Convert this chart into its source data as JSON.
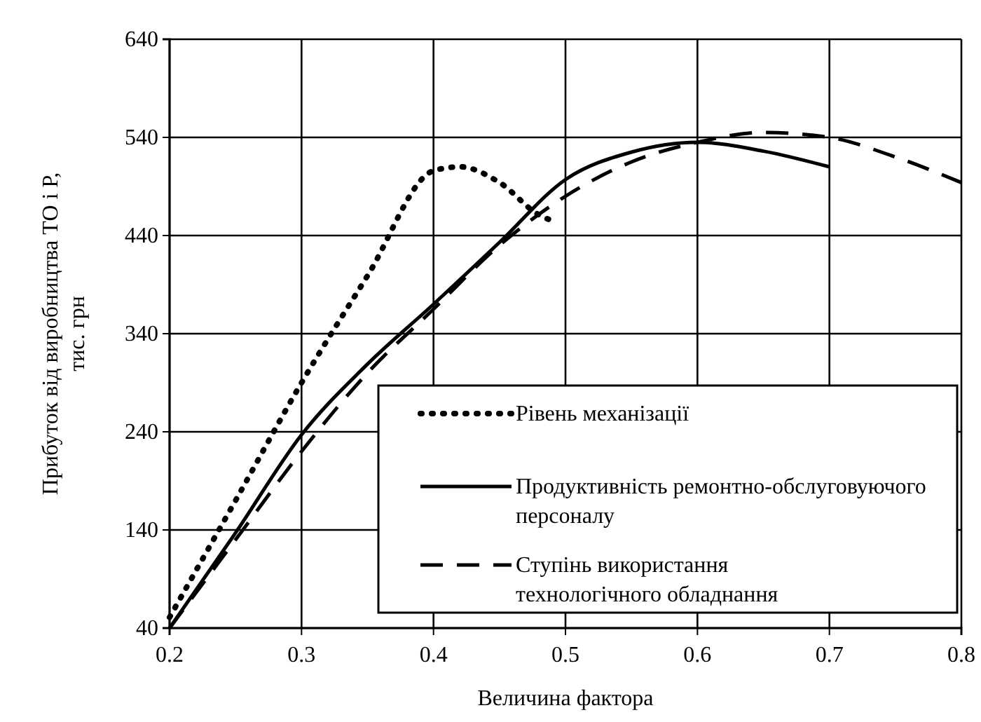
{
  "chart_data": {
    "type": "line",
    "xlabel": "Величина фактора",
    "ylabel": "Прибуток від виробництва ТО і Р, тис. грн",
    "xlim": [
      0.2,
      0.8
    ],
    "xticks": [
      0.2,
      0.3,
      0.4,
      0.5,
      0.6,
      0.7,
      0.8
    ],
    "ylim": [
      40,
      640
    ],
    "yticks": [
      40,
      140,
      240,
      340,
      440,
      540,
      640
    ],
    "grid": true,
    "legend": "bottom right",
    "series": [
      {
        "name": "Рівень механізації",
        "color": "#000000",
        "line_style": "dotted",
        "x": [
          0.2,
          0.25,
          0.3,
          0.35,
          0.4,
          0.42,
          0.45,
          0.48,
          0.49
        ],
        "values": [
          51,
          170,
          290,
          399,
          506,
          510,
          494,
          461,
          455
        ]
      },
      {
        "name": "Продуктивність ремонтно-обслуговуючого персоналу",
        "color": "#000000",
        "line_style": "solid",
        "x": [
          0.2,
          0.25,
          0.3,
          0.35,
          0.4,
          0.45,
          0.5,
          0.55,
          0.6,
          0.65,
          0.7
        ],
        "values": [
          40,
          137,
          237,
          309,
          370,
          433,
          497,
          525,
          535,
          526,
          510
        ]
      },
      {
        "name": "Ступінь використання технологічного обладнання",
        "color": "#000000",
        "line_style": "dashed",
        "x": [
          0.2,
          0.25,
          0.3,
          0.35,
          0.4,
          0.45,
          0.5,
          0.55,
          0.6,
          0.65,
          0.7,
          0.75,
          0.8
        ],
        "values": [
          40,
          130,
          220,
          300,
          365,
          430,
          480,
          515,
          535,
          545,
          540,
          520,
          494
        ]
      }
    ]
  }
}
